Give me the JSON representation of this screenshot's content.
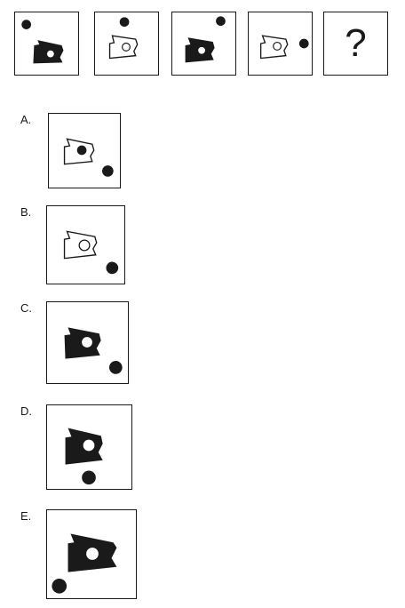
{
  "question_mark": "?",
  "options": [
    {
      "label": "A."
    },
    {
      "label": "B."
    },
    {
      "label": "C."
    },
    {
      "label": "D."
    },
    {
      "label": "E."
    }
  ],
  "colors": {
    "ink": "#1a1a1a",
    "paper": "#ffffff"
  }
}
